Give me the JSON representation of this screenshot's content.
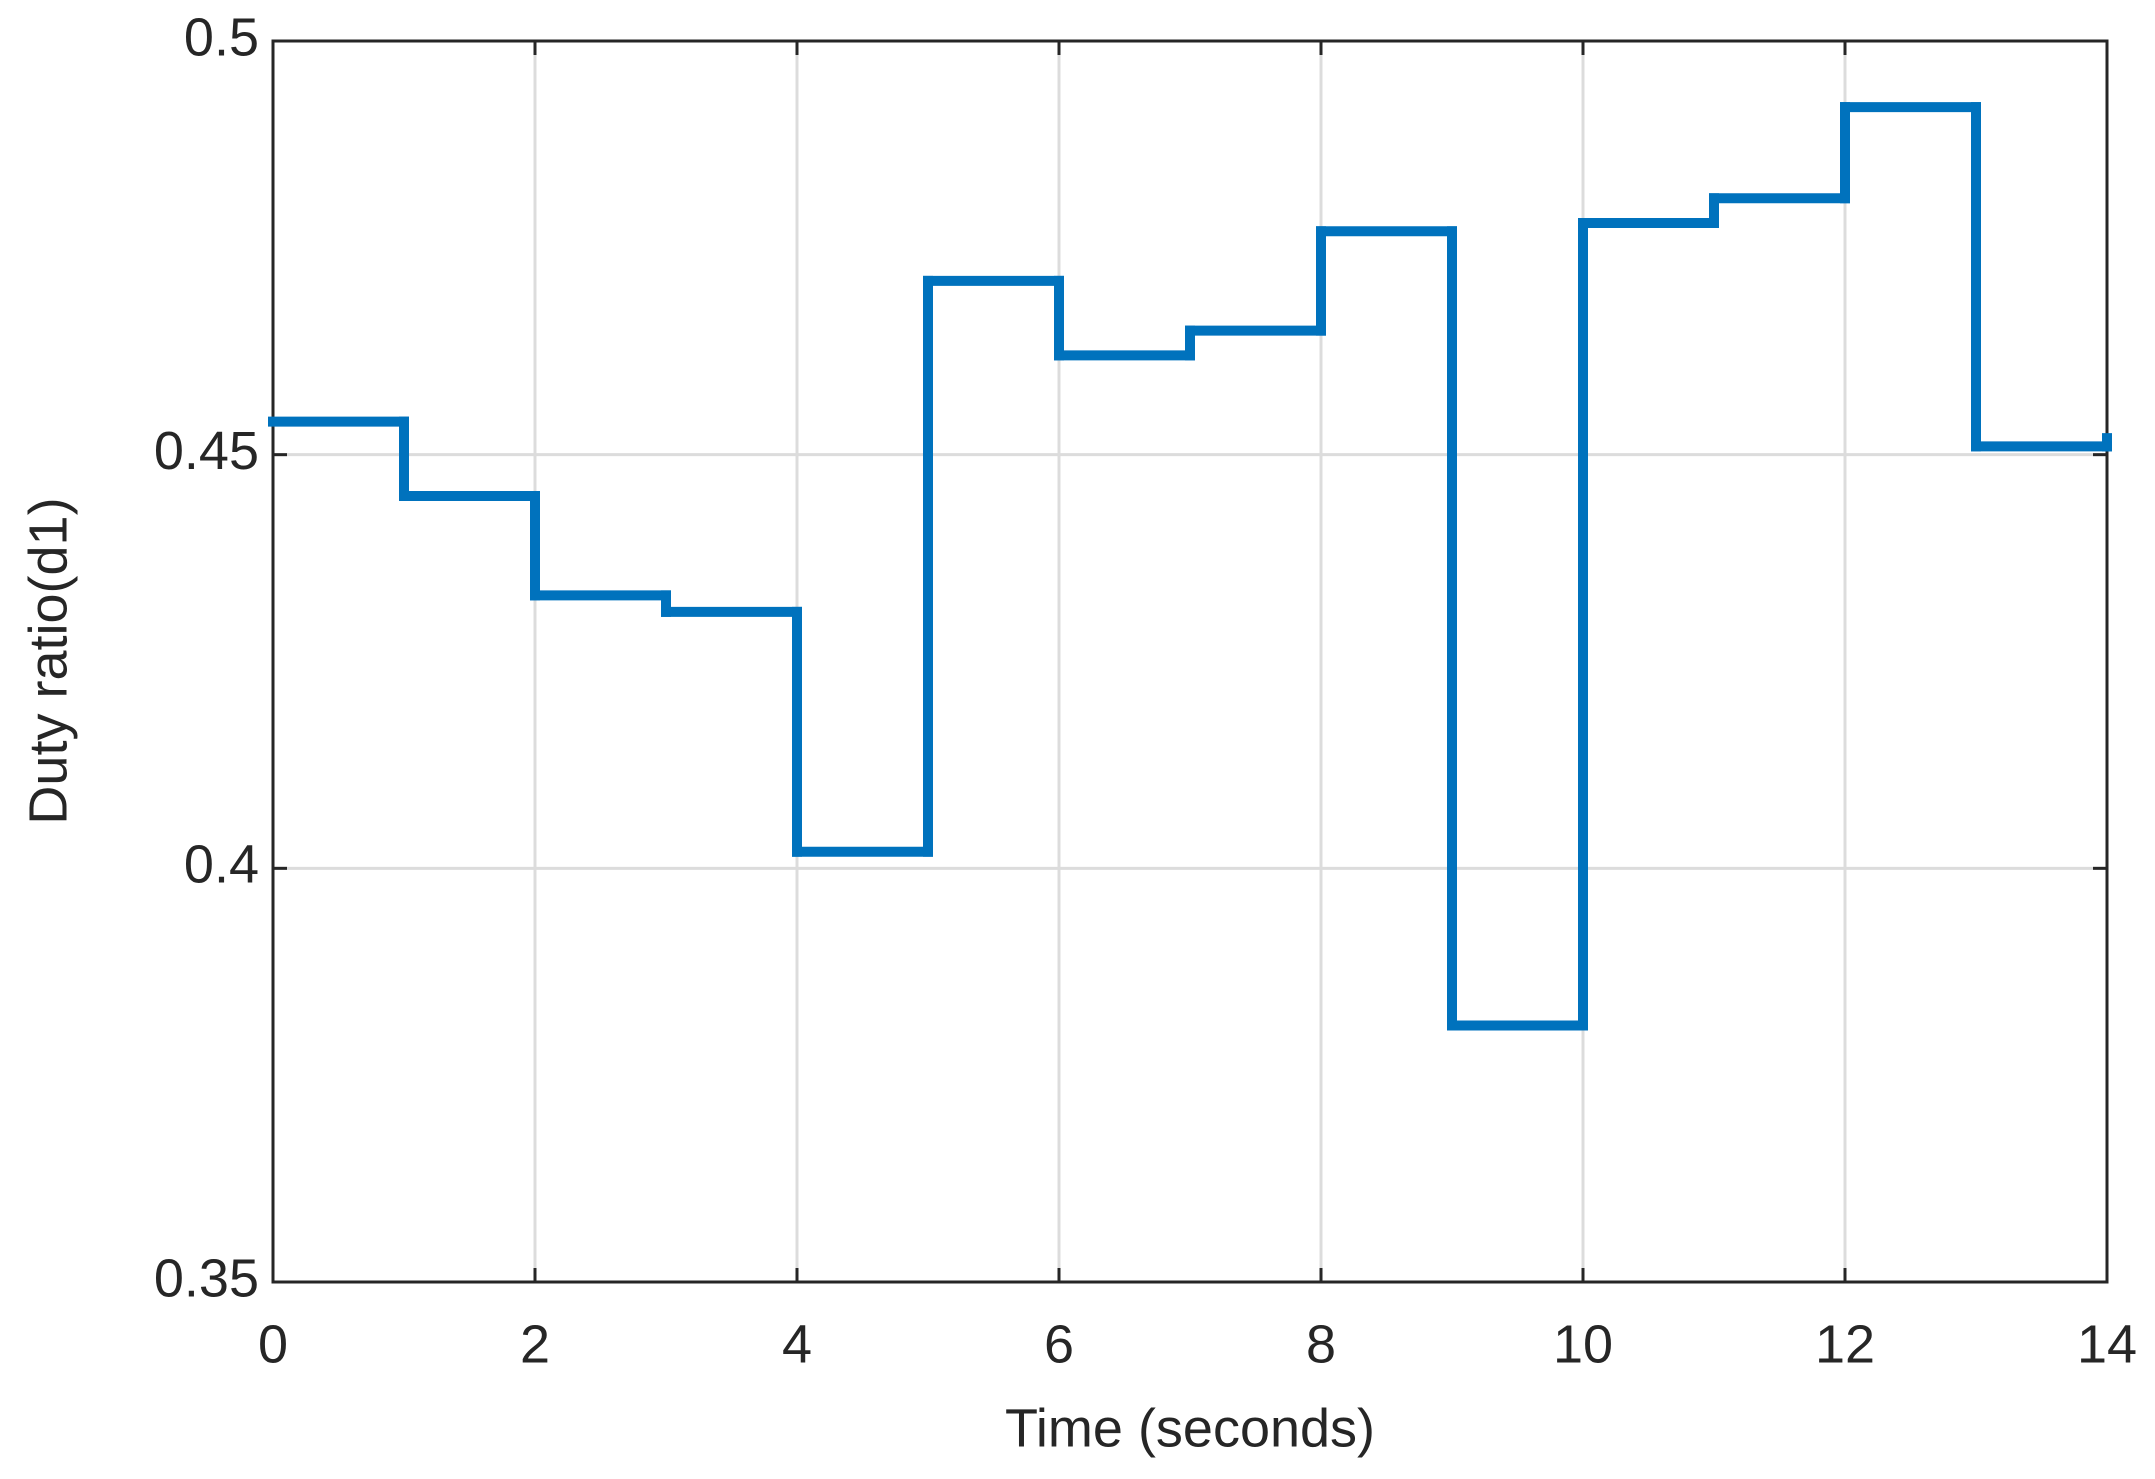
{
  "chart_data": {
    "type": "step",
    "xlabel": "Time (seconds)",
    "ylabel": "Duty ratio(d1)",
    "x": [
      0,
      1,
      2,
      3,
      4,
      5,
      6,
      7,
      8,
      9,
      10,
      11,
      12,
      13,
      14
    ],
    "series": [
      {
        "color": "#0072bd",
        "values": [
          0.454,
          0.445,
          0.433,
          0.431,
          0.402,
          0.471,
          0.462,
          0.465,
          0.477,
          0.381,
          0.478,
          0.481,
          0.492,
          0.451,
          0.452
        ]
      }
    ],
    "xlim": [
      0,
      14
    ],
    "xticks": [
      0,
      2,
      4,
      6,
      8,
      10,
      12,
      14
    ],
    "ylim": [
      0.35,
      0.5
    ],
    "yticks": [
      0.35,
      0.4,
      0.45,
      0.5
    ],
    "grid": true
  }
}
